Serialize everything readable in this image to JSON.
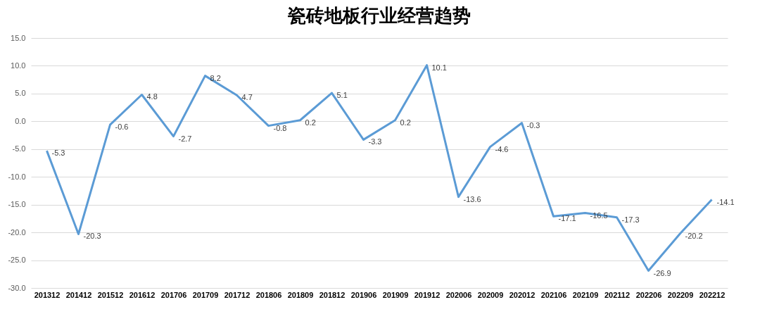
{
  "chart_data": {
    "type": "line",
    "title": "瓷砖地板行业经营趋势",
    "categories": [
      "201312",
      "201412",
      "201512",
      "201612",
      "201706",
      "201709",
      "201712",
      "201806",
      "201809",
      "201812",
      "201906",
      "201909",
      "201912",
      "202006",
      "202009",
      "202012",
      "202106",
      "202109",
      "202112",
      "202206",
      "202209",
      "202212"
    ],
    "series": [
      {
        "color": "#5b9bd5",
        "values": [
          -5.3,
          -20.3,
          -0.6,
          4.8,
          -2.7,
          8.2,
          4.7,
          -0.8,
          0.2,
          5.1,
          -3.3,
          0.2,
          10.1,
          -13.6,
          -4.6,
          -0.3,
          -17.1,
          -16.5,
          -17.3,
          -26.9,
          -20.2,
          -14.1
        ]
      }
    ],
    "ylim": [
      -30,
      15
    ],
    "yticks": [
      {
        "value": -30,
        "label": "-30.0"
      },
      {
        "value": -25,
        "label": "-25.0"
      },
      {
        "value": -20,
        "label": "-20.0"
      },
      {
        "value": -15,
        "label": "-15.0"
      },
      {
        "value": -10,
        "label": "-10.0"
      },
      {
        "value": -5,
        "label": "-5.0"
      },
      {
        "value": 0,
        "label": "0.0"
      },
      {
        "value": 5,
        "label": "5.0"
      },
      {
        "value": 10,
        "label": "10.0"
      },
      {
        "value": 15,
        "label": "15.0"
      }
    ],
    "grid": "y",
    "data_labels": true,
    "marker": "none"
  }
}
